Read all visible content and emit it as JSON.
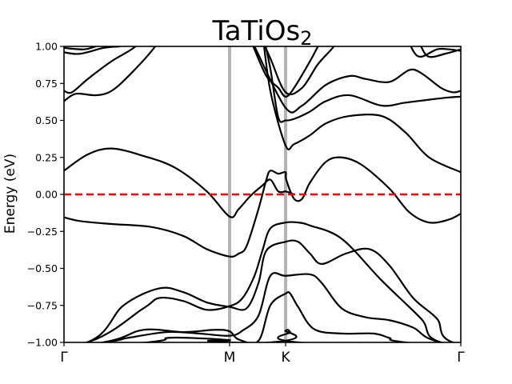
{
  "chart_data": {
    "type": "line",
    "title": "TaTiOs",
    "title_subscript": "2",
    "xlabel": "",
    "ylabel": "Energy (eV)",
    "ylim": [
      -1.0,
      1.0
    ],
    "xlim": [
      0,
      1
    ],
    "yticks": [
      {
        "value": 1.0,
        "label": "1.00"
      },
      {
        "value": 0.75,
        "label": "0.75"
      },
      {
        "value": 0.5,
        "label": "0.50"
      },
      {
        "value": 0.25,
        "label": "0.25"
      },
      {
        "value": 0.0,
        "label": "0.00"
      },
      {
        "value": -0.25,
        "label": "−0.25"
      },
      {
        "value": -0.5,
        "label": "−0.50"
      },
      {
        "value": -0.75,
        "label": "−0.75"
      },
      {
        "value": -1.0,
        "label": "−1.00"
      }
    ],
    "kpoints": [
      {
        "label": "Γ",
        "x": 0.0
      },
      {
        "label": "M",
        "x": 0.4173
      },
      {
        "label": "K",
        "x": 0.5585
      },
      {
        "label": "Γ",
        "x": 1.0
      }
    ],
    "fermi_level": {
      "value": 0.0,
      "color": "#ee0000"
    },
    "kpath_line_color": "#b4b4b4",
    "band_color": "#000000",
    "series": [
      {
        "values": [
          [
            -0.2,
            -1.1
          ],
          [
            0.058,
            -1.0
          ],
          [
            0.2,
            -0.77
          ],
          [
            0.24,
            -0.7
          ],
          [
            0.3,
            -0.72
          ],
          [
            0.36,
            -0.78
          ],
          [
            0.4173,
            -0.755
          ],
          [
            0.45,
            -0.7
          ],
          [
            0.48,
            -0.55
          ],
          [
            0.5,
            -0.38
          ],
          [
            0.52,
            -0.23
          ],
          [
            0.5585,
            -0.19
          ],
          [
            0.59,
            -0.19
          ],
          [
            0.62,
            -0.21
          ],
          [
            0.7,
            -0.3
          ],
          [
            0.8,
            -0.58
          ],
          [
            0.9,
            -0.84
          ],
          [
            0.95,
            -1.0
          ],
          [
            1.2,
            -1.1
          ]
        ]
      },
      {
        "values": [
          [
            -0.2,
            -1.1
          ],
          [
            0.058,
            -1.0
          ],
          [
            0.15,
            -0.75
          ],
          [
            0.24,
            -0.635
          ],
          [
            0.3,
            -0.66
          ],
          [
            0.36,
            -0.73
          ],
          [
            0.4173,
            -0.76
          ],
          [
            0.46,
            -0.77
          ],
          [
            0.49,
            -0.6
          ],
          [
            0.51,
            -0.38
          ],
          [
            0.5585,
            -0.32
          ],
          [
            0.59,
            -0.32
          ],
          [
            0.62,
            -0.4
          ],
          [
            0.65,
            -0.47
          ],
          [
            0.71,
            -0.4
          ],
          [
            0.77,
            -0.37
          ],
          [
            0.82,
            -0.48
          ],
          [
            0.88,
            -0.7
          ],
          [
            0.94,
            -0.84
          ],
          [
            0.98,
            -1.0
          ],
          [
            1.2,
            -1.1
          ]
        ]
      },
      {
        "values": [
          [
            -0.2,
            -1.1
          ],
          [
            0.102,
            -1.0
          ],
          [
            0.16,
            -0.97
          ],
          [
            0.26,
            -0.93
          ],
          [
            0.34,
            -0.94
          ],
          [
            0.4173,
            -0.955
          ],
          [
            0.45,
            -0.92
          ],
          [
            0.49,
            -0.82
          ],
          [
            0.52,
            -0.55
          ],
          [
            0.5585,
            -0.55
          ],
          [
            0.62,
            -0.54
          ],
          [
            0.65,
            -0.6
          ],
          [
            0.7,
            -0.77
          ],
          [
            0.76,
            -0.83
          ],
          [
            0.82,
            -0.85
          ],
          [
            0.88,
            -0.9
          ],
          [
            0.95,
            -1.0
          ],
          [
            1.2,
            -1.1
          ]
        ]
      },
      {
        "values": [
          [
            -0.2,
            -1.1
          ],
          [
            0.098,
            -1.0
          ],
          [
            0.2,
            -0.915
          ],
          [
            0.3,
            -0.93
          ],
          [
            0.38,
            -0.915
          ],
          [
            0.4173,
            -0.925
          ],
          [
            0.44,
            -0.98
          ],
          [
            0.49,
            -0.99
          ],
          [
            0.52,
            -0.75
          ],
          [
            0.5585,
            -0.67
          ],
          [
            0.57,
            -0.67
          ],
          [
            0.59,
            -0.76
          ],
          [
            0.63,
            -0.91
          ],
          [
            0.7,
            -0.94
          ],
          [
            0.78,
            -0.94
          ],
          [
            0.82,
            -0.97
          ],
          [
            0.86,
            -1.0
          ],
          [
            1.2,
            -1.1
          ]
        ]
      },
      {
        "values": [
          [
            -0.2,
            -1.1
          ],
          [
            0.21,
            -1.0
          ],
          [
            0.26,
            -0.97
          ],
          [
            0.32,
            -0.97
          ],
          [
            0.4173,
            -0.985
          ],
          [
            0.4173,
            -1.0
          ],
          [
            1.2,
            -1.1
          ]
        ]
      },
      {
        "values": [
          [
            -0.2,
            -1.1
          ],
          [
            0.52,
            -1.0
          ],
          [
            0.5585,
            -0.92
          ],
          [
            0.57,
            -0.93
          ],
          [
            0.59,
            -1.0
          ],
          [
            1.2,
            -1.1
          ]
        ]
      },
      {
        "values": [
          [
            0.0,
            -0.155
          ],
          [
            0.04,
            -0.18
          ],
          [
            0.12,
            -0.2
          ],
          [
            0.22,
            -0.22
          ],
          [
            0.3,
            -0.28
          ],
          [
            0.36,
            -0.37
          ],
          [
            0.4173,
            -0.42
          ],
          [
            0.44,
            -0.4
          ],
          [
            0.46,
            -0.35
          ],
          [
            0.49,
            -0.1
          ],
          [
            0.51,
            0.1
          ],
          [
            0.52,
            0.16
          ],
          [
            0.54,
            0.14
          ],
          [
            0.5585,
            0.15
          ],
          [
            0.56,
            0.1
          ],
          [
            0.58,
            -0.03
          ],
          [
            0.6,
            -0.03
          ],
          [
            0.62,
            0.08
          ],
          [
            0.66,
            0.22
          ],
          [
            0.7,
            0.25
          ],
          [
            0.75,
            0.2
          ],
          [
            0.82,
            0.04
          ],
          [
            0.87,
            -0.12
          ],
          [
            0.92,
            -0.19
          ],
          [
            0.97,
            -0.17
          ],
          [
            1.0,
            -0.13
          ]
        ]
      },
      {
        "values": [
          [
            0.0,
            0.16
          ],
          [
            0.06,
            0.27
          ],
          [
            0.12,
            0.31
          ],
          [
            0.2,
            0.26
          ],
          [
            0.28,
            0.18
          ],
          [
            0.36,
            0.02
          ],
          [
            0.4173,
            -0.15
          ],
          [
            0.44,
            -0.1
          ],
          [
            0.47,
            -0.01
          ],
          [
            0.5,
            0.06
          ],
          [
            0.52,
            0.1
          ],
          [
            0.54,
            0.02
          ],
          [
            0.5585,
            0.02
          ],
          [
            0.57,
            0.01
          ],
          [
            0.58,
            0.0
          ]
        ]
      },
      {
        "values": [
          [
            0.5,
            1.1
          ],
          [
            0.52,
            0.7
          ],
          [
            0.5585,
            0.33
          ],
          [
            0.58,
            0.34
          ],
          [
            0.62,
            0.4
          ],
          [
            0.66,
            0.48
          ],
          [
            0.72,
            0.53
          ],
          [
            0.8,
            0.53
          ],
          [
            0.86,
            0.42
          ],
          [
            0.92,
            0.25
          ],
          [
            1.0,
            0.15
          ]
        ]
      },
      {
        "values": [
          [
            0.5,
            1.1
          ],
          [
            0.52,
            0.85
          ],
          [
            0.54,
            0.52
          ],
          [
            0.5585,
            0.5
          ],
          [
            0.58,
            0.51
          ],
          [
            0.62,
            0.56
          ],
          [
            0.66,
            0.63
          ],
          [
            0.72,
            0.67
          ],
          [
            0.8,
            0.6
          ],
          [
            0.86,
            0.62
          ],
          [
            0.92,
            0.64
          ],
          [
            0.97,
            0.655
          ],
          [
            1.0,
            0.66
          ]
        ]
      },
      {
        "values": [
          [
            0.46,
            1.1
          ],
          [
            0.48,
            1.0
          ],
          [
            0.5585,
            0.585
          ],
          [
            0.6,
            0.6
          ],
          [
            0.66,
            0.74
          ],
          [
            0.72,
            0.8
          ],
          [
            0.76,
            0.78
          ],
          [
            0.82,
            0.76
          ],
          [
            0.87,
            0.84
          ],
          [
            0.9,
            0.82
          ],
          [
            0.95,
            0.72
          ],
          [
            0.98,
            0.69
          ],
          [
            1.0,
            0.7
          ]
        ]
      },
      {
        "values": [
          [
            0.49,
            1.1
          ],
          [
            0.52,
            0.92
          ],
          [
            0.5585,
            0.69
          ],
          [
            0.6,
            0.72
          ],
          [
            0.64,
            0.88
          ],
          [
            0.68,
            1.0
          ],
          [
            0.7,
            1.1
          ]
        ]
      },
      {
        "values": [
          [
            0.462,
            1.1
          ],
          [
            0.48,
            0.98
          ],
          [
            0.51,
            0.8
          ],
          [
            0.54,
            0.72
          ],
          [
            0.5585,
            0.66
          ],
          [
            0.58,
            0.72
          ],
          [
            0.62,
            0.9
          ],
          [
            0.64,
            1.0
          ],
          [
            0.66,
            1.1
          ]
        ]
      },
      {
        "values": [
          [
            0.0,
            0.63
          ],
          [
            0.03,
            0.68
          ],
          [
            0.08,
            0.67
          ],
          [
            0.12,
            0.7
          ],
          [
            0.17,
            0.82
          ],
          [
            0.23,
            1.0
          ],
          [
            0.25,
            1.1
          ]
        ]
      },
      {
        "values": [
          [
            0.0,
            0.7
          ],
          [
            0.02,
            0.69
          ],
          [
            0.06,
            0.78
          ],
          [
            0.12,
            0.9
          ],
          [
            0.18,
            1.0
          ],
          [
            0.2,
            1.1
          ]
        ]
      },
      {
        "values": [
          [
            0.0,
            0.96
          ],
          [
            0.04,
            0.95
          ],
          [
            0.1,
            0.99
          ],
          [
            0.14,
            1.0
          ]
        ]
      },
      {
        "values": [
          [
            0.0,
            0.99
          ],
          [
            0.05,
            0.98
          ],
          [
            0.08,
            1.0
          ]
        ]
      },
      {
        "values": [
          [
            0.89,
            1.1
          ],
          [
            0.9,
            1.0
          ],
          [
            0.92,
            0.93
          ],
          [
            0.96,
            0.95
          ],
          [
            1.0,
            0.98
          ]
        ]
      },
      {
        "values": [
          [
            0.86,
            1.1
          ],
          [
            0.88,
            0.97
          ],
          [
            0.9,
            0.93
          ],
          [
            0.94,
            0.98
          ],
          [
            0.97,
            0.98
          ],
          [
            1.0,
            0.97
          ]
        ]
      }
    ]
  }
}
